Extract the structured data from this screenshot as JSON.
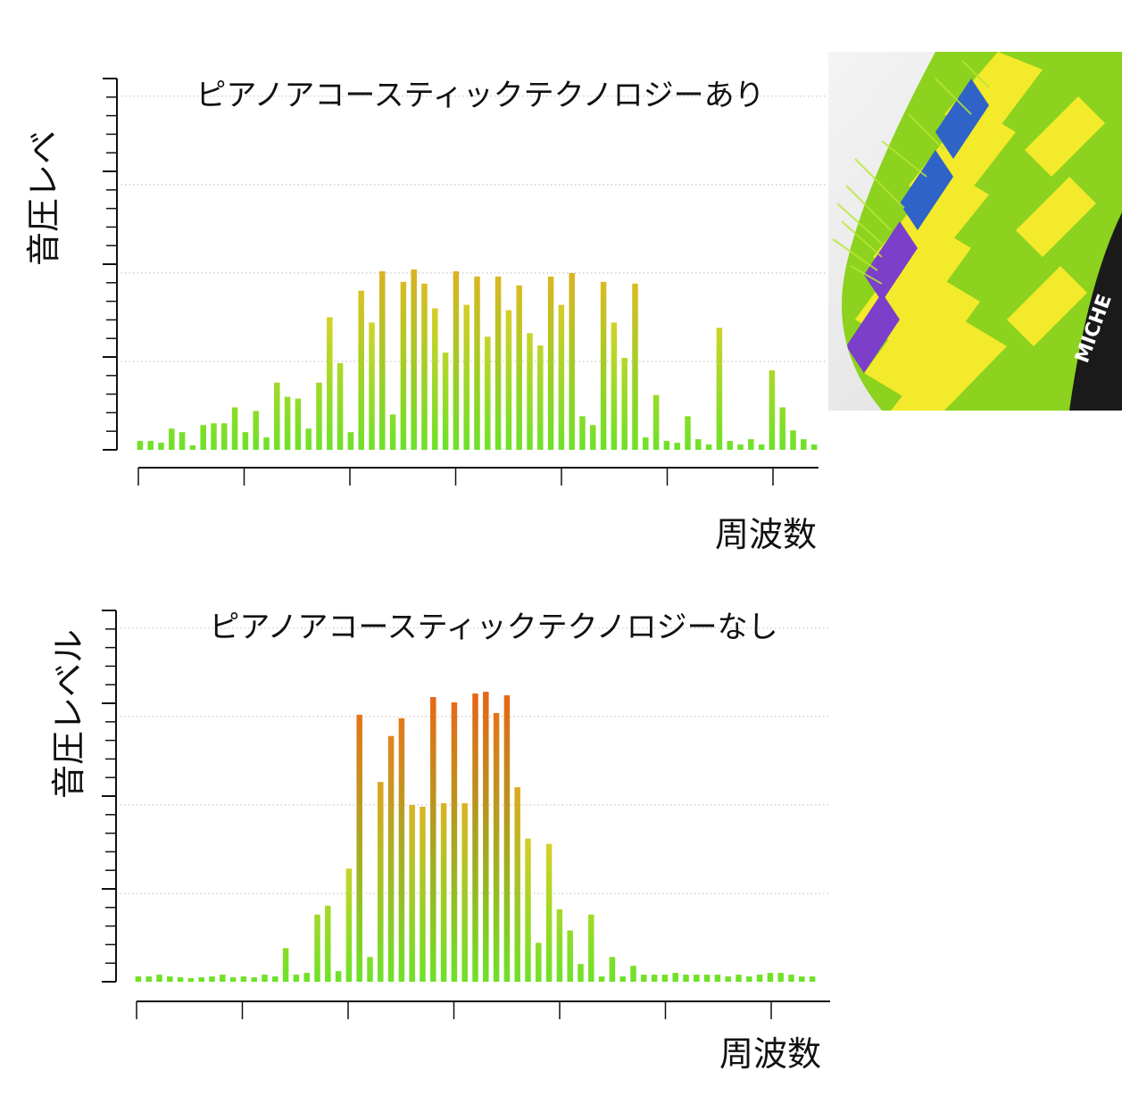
{
  "chart_data": [
    {
      "type": "bar",
      "title": "ピアノアコースティックテクノロジーあり",
      "ylabel": "音圧レベ",
      "xlabel": "周波数",
      "ylim": [
        0,
        4.2
      ],
      "grid": true,
      "values": [
        0.1,
        0.1,
        0.08,
        0.24,
        0.2,
        0.05,
        0.28,
        0.3,
        0.3,
        0.48,
        0.2,
        0.44,
        0.14,
        0.76,
        0.6,
        0.58,
        0.24,
        0.76,
        1.5,
        0.98,
        0.2,
        1.8,
        1.44,
        2.02,
        0.4,
        1.9,
        2.04,
        1.88,
        1.6,
        1.1,
        2.02,
        1.64,
        1.96,
        1.28,
        1.96,
        1.58,
        1.86,
        1.32,
        1.18,
        1.96,
        1.64,
        2,
        0.38,
        0.28,
        1.9,
        1.44,
        1.04,
        1.88,
        0.14,
        0.62,
        0.1,
        0.08,
        0.38,
        0.12,
        0.06,
        1.38,
        0.1,
        0.06,
        0.12,
        0.06,
        0.9,
        0.48,
        0.22,
        0.12,
        0.06
      ]
    },
    {
      "type": "bar",
      "title": "ピアノアコースティックテクノロジーなし",
      "ylabel": "音圧レベル",
      "xlabel": "周波数",
      "ylim": [
        0,
        4.2
      ],
      "grid": true,
      "values": [
        0.06,
        0.06,
        0.08,
        0.06,
        0.05,
        0.04,
        0.05,
        0.06,
        0.08,
        0.05,
        0.06,
        0.05,
        0.08,
        0.06,
        0.38,
        0.08,
        0.1,
        0.76,
        0.86,
        0.12,
        1.28,
        3.02,
        0.28,
        2.26,
        2.78,
        2.98,
        2,
        1.98,
        3.22,
        2.02,
        3.16,
        2.02,
        3.26,
        3.28,
        3.04,
        3.24,
        2.2,
        1.62,
        0.44,
        1.56,
        0.82,
        0.58,
        0.2,
        0.76,
        0.06,
        0.28,
        0.06,
        0.18,
        0.08,
        0.08,
        0.08,
        0.1,
        0.08,
        0.08,
        0.08,
        0.08,
        0.06,
        0.08,
        0.06,
        0.08,
        0.1,
        0.1,
        0.08,
        0.06,
        0.06
      ]
    }
  ],
  "image": {
    "brand": "MICHE",
    "colors": [
      "#f2ea2a",
      "#8cd21e",
      "#7b3fc9",
      "#2f63c7",
      "#1a1a1a",
      "#e6e6e6"
    ]
  }
}
